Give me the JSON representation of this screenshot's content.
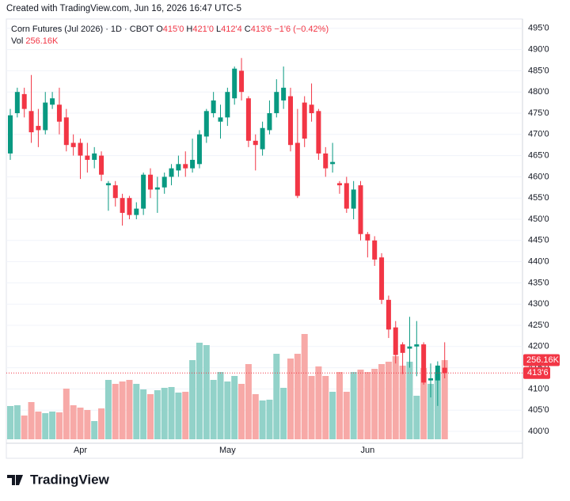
{
  "credit": "Created with TradingView.com, Jun 16, 2026 16:47 UTC-5",
  "brand": "TradingView",
  "chart_data": {
    "type": "candlestick",
    "title": "Corn Futures (Jul 2026) · 1D · CBOT",
    "legend": {
      "o_key": "O",
      "o": "415'0",
      "h_key": "H",
      "h": "421'0",
      "l_key": "L",
      "l": "412'4",
      "c_key": "C",
      "c": "413'6",
      "change": "−1'6 (−0.42%)",
      "vol_key": "Vol",
      "vol": "256.16K"
    },
    "categories": [
      null,
      null,
      null,
      null,
      null,
      null,
      null,
      null,
      null,
      null,
      "Apr",
      null,
      null,
      null,
      null,
      null,
      null,
      null,
      null,
      null,
      null,
      null,
      null,
      null,
      null,
      null,
      null,
      null,
      null,
      null,
      null,
      "May",
      null,
      null,
      null,
      null,
      null,
      null,
      null,
      null,
      null,
      null,
      null,
      null,
      null,
      null,
      null,
      null,
      null,
      null,
      null,
      "Jun",
      null,
      null,
      null,
      null,
      null,
      null,
      null,
      null,
      null,
      null,
      null
    ],
    "open": [
      465.5,
      475,
      479.5,
      475.5,
      472,
      471,
      477,
      477,
      474,
      468,
      468,
      465,
      464,
      465,
      458,
      458,
      455,
      455,
      451,
      452.5,
      460.5,
      457,
      457.5,
      460,
      461.5,
      463,
      462,
      463,
      469.5,
      475,
      473,
      474,
      478.5,
      485,
      478.5,
      468.5,
      466.5,
      471,
      475,
      478,
      479,
      468,
      477.5,
      477,
      475.5,
      465.5,
      463,
      458.5,
      458.5,
      452.5,
      458,
      446.5,
      445,
      441,
      431,
      424.5,
      420.5,
      419.5,
      420,
      420.5,
      412,
      412,
      415
    ],
    "high": [
      476,
      481,
      481,
      484,
      476,
      480,
      480,
      481,
      476,
      470,
      469,
      468,
      467,
      466,
      459,
      459,
      456,
      455.5,
      454,
      461,
      462,
      460,
      461,
      463,
      465,
      466,
      469,
      471,
      476,
      480,
      477,
      481,
      486,
      488,
      479,
      470,
      473,
      478,
      483,
      486,
      481,
      476,
      479,
      482,
      476,
      467,
      468,
      459,
      460,
      459,
      459,
      447,
      446,
      442,
      432,
      426,
      421,
      427,
      426,
      421,
      416,
      416.5,
      421
    ],
    "low": [
      464,
      474,
      474,
      468,
      467,
      470,
      476,
      470,
      466,
      465,
      459.5,
      461,
      462,
      459,
      452,
      453,
      448.5,
      450,
      450,
      451,
      455,
      451.5,
      456,
      458,
      460,
      460,
      461,
      462,
      468,
      474,
      469,
      472,
      477,
      478,
      467,
      461.5,
      465,
      470,
      474,
      476,
      466,
      455,
      467,
      473,
      464,
      460,
      461,
      456,
      451.5,
      450,
      445,
      441,
      439,
      430,
      422,
      416,
      413.5,
      415,
      413,
      411,
      408,
      406,
      412.5
    ],
    "close": [
      474.5,
      480,
      476,
      470.5,
      471,
      477.5,
      478.5,
      473,
      467.5,
      467,
      465,
      464,
      465.5,
      460.5,
      458.5,
      455,
      451.5,
      451,
      452.5,
      460.5,
      457,
      457.5,
      460,
      462,
      463,
      462,
      464,
      470,
      475.5,
      478,
      474,
      480,
      485.5,
      480,
      468.5,
      467.5,
      471.5,
      475,
      480,
      481,
      467.5,
      455.5,
      469,
      475,
      465.5,
      462,
      463.5,
      458,
      452.5,
      457,
      446.5,
      445,
      440.5,
      431,
      424,
      418,
      418.5,
      420,
      420.5,
      411.5,
      412.5,
      415.5,
      413.75
    ],
    "volume": [
      107.6,
      110.1,
      76.8,
      120.4,
      89.7,
      84.5,
      89.7,
      87.1,
      163.9,
      110.1,
      102.5,
      94.8,
      58.9,
      99.9,
      192.1,
      179.3,
      187.0,
      192.1,
      179.3,
      161.4,
      146.0,
      158.8,
      166.5,
      169.1,
      151.1,
      153.7,
      256.2,
      312.5,
      304.8,
      192.1,
      217.7,
      187.0,
      204.9,
      179.3,
      243.4,
      146.0,
      125.5,
      128.1,
      276.7,
      166.5,
      261.3,
      276.7,
      340.7,
      204.9,
      235.7,
      204.9,
      153.7,
      217.7,
      153.7,
      217.7,
      225.4,
      217.7,
      228.0,
      243.4,
      251.0,
      269.0,
      238.2,
      251.0,
      140.9,
      230.5,
      179.3,
      217.7,
      256.16
    ],
    "last_volume": {
      "value": 256.16,
      "label": "256.16K"
    },
    "last_price": {
      "value": 413.75,
      "label": "413'6"
    },
    "ylim": [
      397.2,
      497.2
    ],
    "yticks": [
      {
        "value": 400,
        "label": "400'0"
      },
      {
        "value": 405,
        "label": "405'0"
      },
      {
        "value": 410,
        "label": "410'0"
      },
      {
        "value": 415,
        "label": "415'0"
      },
      {
        "value": 420,
        "label": "420'0"
      },
      {
        "value": 425,
        "label": "425'0"
      },
      {
        "value": 430,
        "label": "430'0"
      },
      {
        "value": 435,
        "label": "435'0"
      },
      {
        "value": 440,
        "label": "440'0"
      },
      {
        "value": 445,
        "label": "445'0"
      },
      {
        "value": 450,
        "label": "450'0"
      },
      {
        "value": 455,
        "label": "455'0"
      },
      {
        "value": 460,
        "label": "460'0"
      },
      {
        "value": 465,
        "label": "465'0"
      },
      {
        "value": 470,
        "label": "470'0"
      },
      {
        "value": 475,
        "label": "475'0"
      },
      {
        "value": 480,
        "label": "480'0"
      },
      {
        "value": 485,
        "label": "485'0"
      },
      {
        "value": 490,
        "label": "490'0"
      },
      {
        "value": 495,
        "label": "495'0"
      }
    ],
    "grid": true,
    "up_color": "#089981",
    "down_color": "#f23645",
    "volume_up_color": "#92d2c9",
    "volume_down_color": "#f7a9a7"
  }
}
